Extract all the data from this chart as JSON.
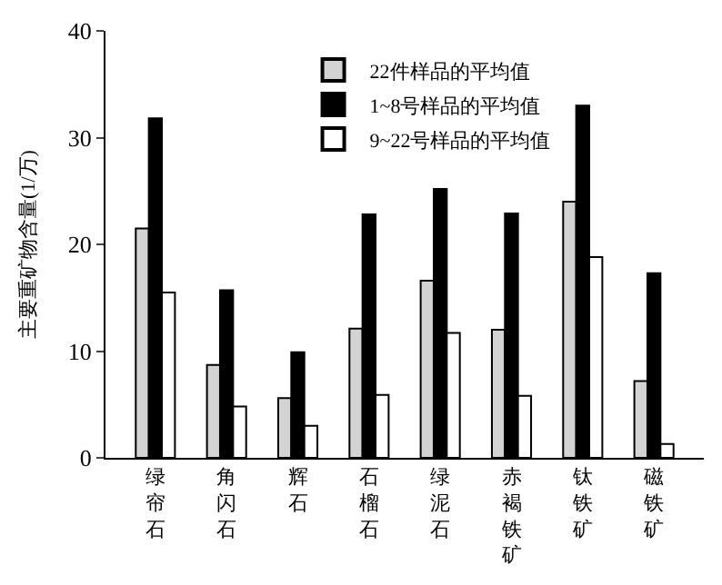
{
  "chart_data": {
    "type": "bar",
    "ylabel": "主要重矿物含量(1/万)",
    "categories": [
      "绿帘石",
      "角闪石",
      "辉石",
      "石榴石",
      "绿泥石",
      "赤褐铁矿",
      "钛铁矿",
      "磁铁矿"
    ],
    "series": [
      {
        "name": "22件样品的平均值",
        "color": "#d3d3d3",
        "values": [
          21.5,
          8.7,
          5.6,
          12.1,
          16.6,
          12.0,
          24.0,
          7.2
        ]
      },
      {
        "name": "1~8号样品的平均值",
        "color": "#000000",
        "values": [
          31.8,
          15.7,
          9.9,
          22.8,
          25.2,
          22.9,
          33.0,
          17.3
        ]
      },
      {
        "name": "9~22号样品的平均值",
        "color": "#ffffff",
        "values": [
          15.5,
          4.8,
          3.0,
          5.9,
          11.7,
          5.8,
          18.8,
          1.3
        ]
      }
    ],
    "ylim": [
      0,
      40
    ],
    "yticks": [
      0,
      10,
      20,
      30,
      40
    ],
    "legend": "top right"
  }
}
